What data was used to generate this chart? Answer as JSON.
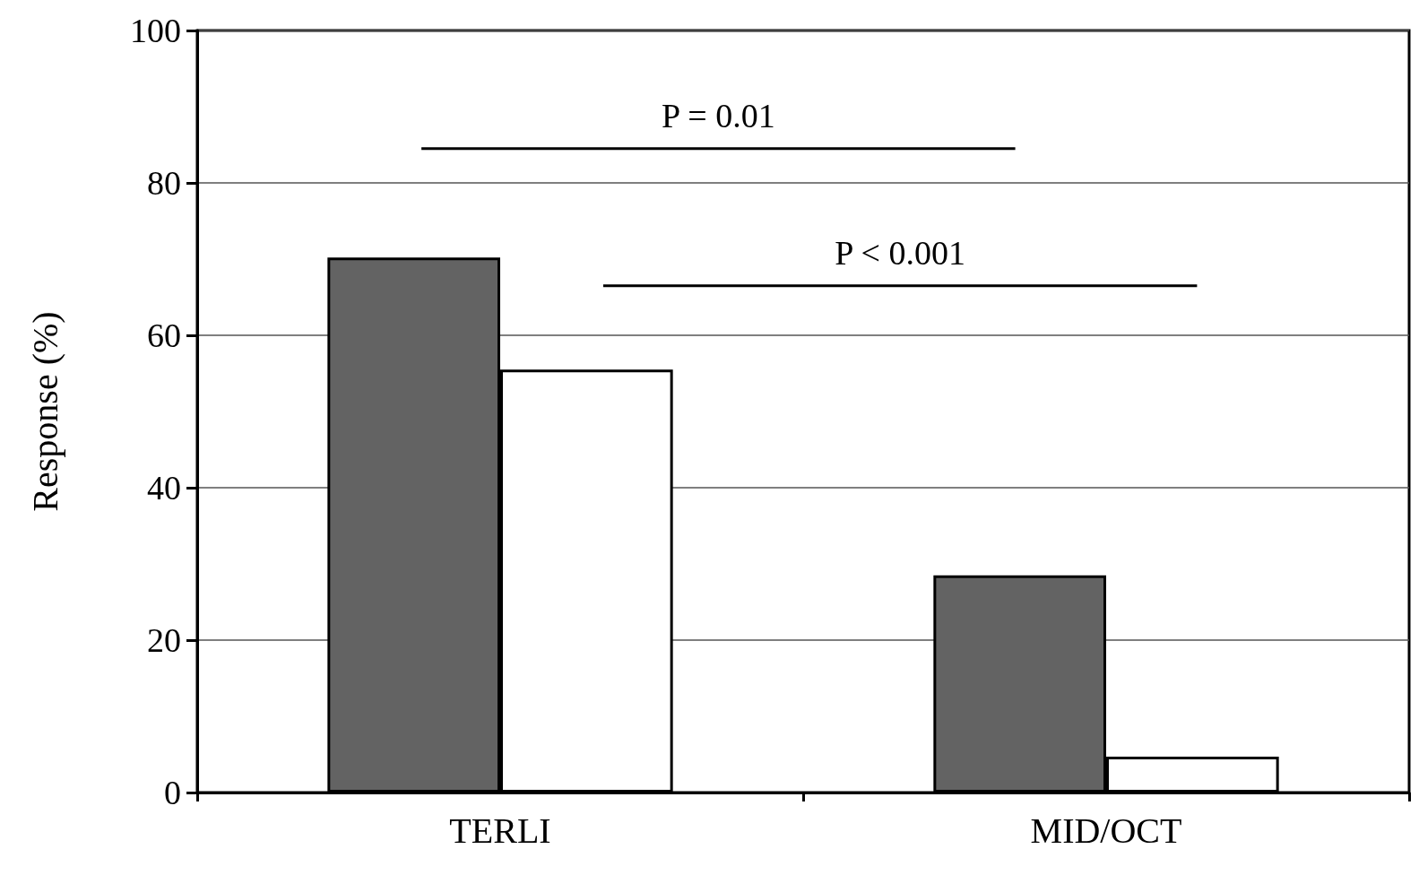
{
  "chart_data": {
    "type": "bar",
    "ylabel": "Response (%)",
    "categories": [
      "TERLI",
      "MID/OCT"
    ],
    "series": [
      {
        "color": "#636363",
        "values": [
          70.2,
          28.5
        ]
      },
      {
        "color": "#ffffff",
        "values": [
          55.5,
          4.7
        ]
      }
    ],
    "ylim": [
      0,
      100
    ],
    "yticks": [
      0,
      20,
      40,
      60,
      80,
      100
    ],
    "grid": "y",
    "annotations": [
      "P = 0.01",
      "P < 0.001"
    ]
  }
}
